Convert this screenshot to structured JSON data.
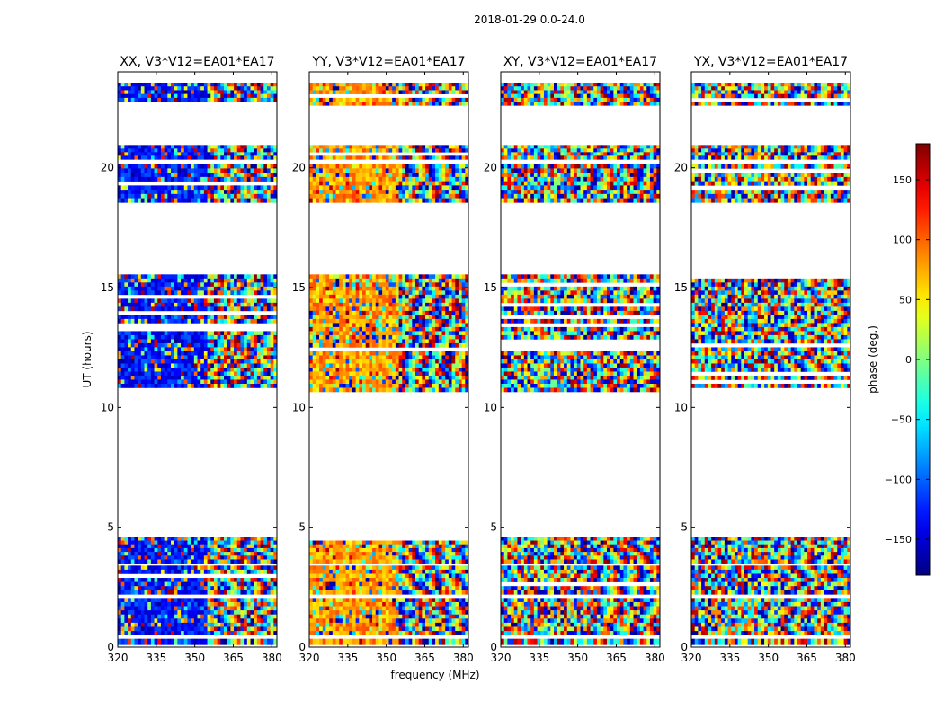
{
  "suptitle": "2018-01-29 0.0-24.0",
  "chart_data": {
    "type": "heatmap",
    "xlabel": "frequency (MHz)",
    "ylabel": "UT (hours)",
    "xlim": [
      320,
      382
    ],
    "ylim": [
      0,
      24
    ],
    "xticks": [
      320,
      335,
      350,
      365,
      380
    ],
    "yticks": [
      0,
      5,
      10,
      15,
      20
    ],
    "panels": [
      {
        "title": "XX, V3*V12=EA01*EA17",
        "low_freq_bias": -130
      },
      {
        "title": "YY, V3*V12=EA01*EA17",
        "low_freq_bias": 80
      },
      {
        "title": "XY, V3*V12=EA01*EA17",
        "low_freq_bias": null
      },
      {
        "title": "YX, V3*V12=EA01*EA17",
        "low_freq_bias": null
      }
    ],
    "data_blocks_ut": [
      [
        0.1,
        0.35
      ],
      [
        0.5,
        2.05
      ],
      [
        2.2,
        3.4
      ],
      [
        3.5,
        4.6
      ],
      [
        10.65,
        15.55
      ],
      [
        18.55,
        20.15
      ],
      [
        20.35,
        20.95
      ],
      [
        22.6,
        23.55
      ]
    ],
    "colorbar": {
      "label": "phase (deg.)",
      "range": [
        -180,
        180
      ],
      "ticks": [
        -150,
        -100,
        -50,
        0,
        50,
        100,
        150
      ],
      "colormap": "jet"
    }
  }
}
